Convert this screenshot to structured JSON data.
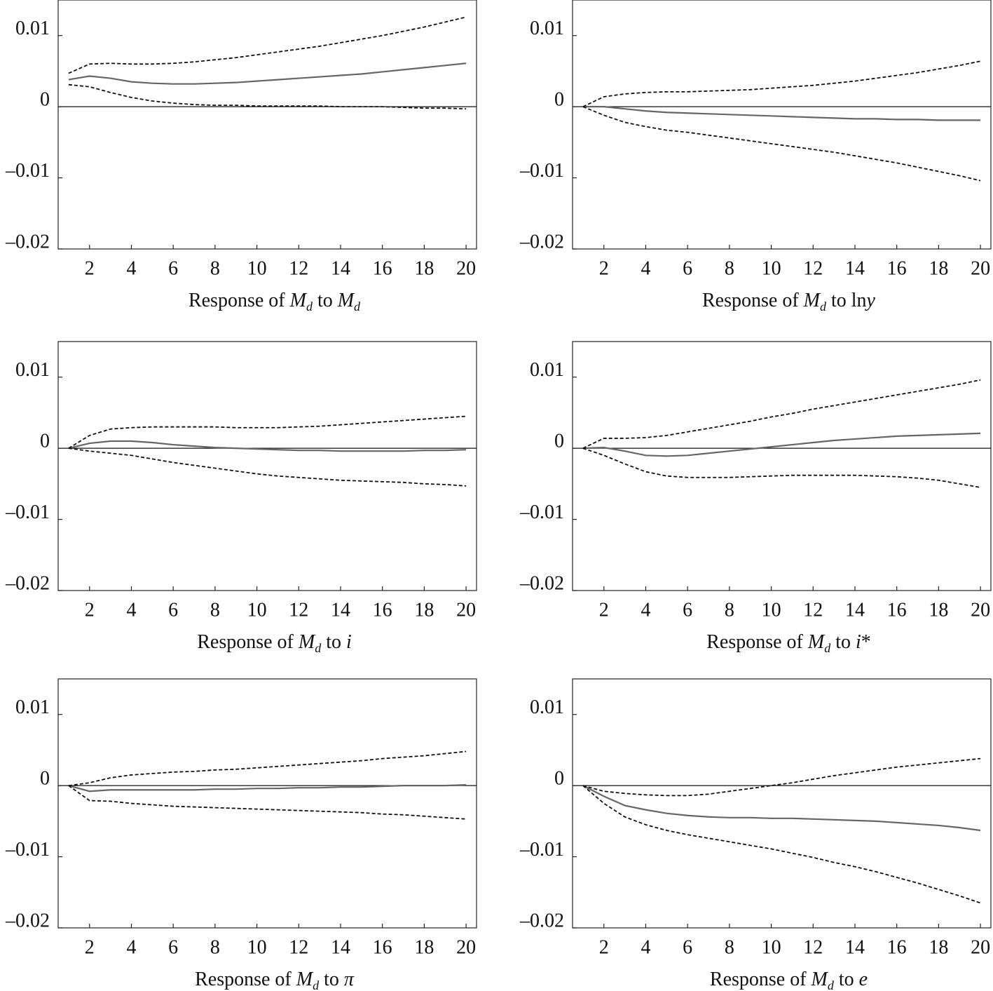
{
  "chart_data": [
    {
      "type": "line",
      "title": [
        {
          "text": "Response of "
        },
        {
          "text": "M",
          "italic": true
        },
        {
          "text": "d",
          "italic": true,
          "sub": true
        },
        {
          "text": " to "
        },
        {
          "text": "M",
          "italic": true
        },
        {
          "text": "d",
          "italic": true,
          "sub": true
        }
      ],
      "x": [
        1,
        2,
        3,
        4,
        5,
        6,
        7,
        8,
        9,
        10,
        11,
        12,
        13,
        14,
        15,
        16,
        17,
        18,
        19,
        20
      ],
      "xlim": [
        0.5,
        20.5
      ],
      "xticks": [
        2,
        4,
        6,
        8,
        10,
        12,
        14,
        16,
        18,
        20
      ],
      "ylim": [
        -0.02,
        0.015
      ],
      "yticks": [
        {
          "value": -0.02,
          "label": "–0.02"
        },
        {
          "value": -0.01,
          "label": "–0.01"
        },
        0,
        0.01
      ],
      "zero_line": true,
      "series": [
        {
          "color": "#666666",
          "dash": false,
          "values": [
            0.0038,
            0.0043,
            0.004,
            0.0035,
            0.0033,
            0.0032,
            0.0032,
            0.0033,
            0.0034,
            0.0036,
            0.0038,
            0.004,
            0.0042,
            0.0044,
            0.0046,
            0.0049,
            0.0052,
            0.0055,
            0.0058,
            0.0061
          ]
        },
        {
          "color": "#111111",
          "dash": true,
          "values": [
            0.0047,
            0.006,
            0.0061,
            0.006,
            0.006,
            0.0061,
            0.0063,
            0.0066,
            0.0069,
            0.0073,
            0.0077,
            0.0081,
            0.0085,
            0.009,
            0.0095,
            0.01,
            0.0106,
            0.0112,
            0.0119,
            0.0126
          ]
        },
        {
          "color": "#111111",
          "dash": true,
          "values": [
            0.0031,
            0.0028,
            0.002,
            0.0013,
            0.0008,
            0.0005,
            0.0003,
            0.0002,
            0.0002,
            0.0001,
            0.0001,
            0.0001,
            0.0001,
            0,
            0,
            0,
            -0.0001,
            -0.0002,
            -0.0002,
            -0.0003
          ]
        }
      ]
    },
    {
      "type": "line",
      "title": [
        {
          "text": "Response of "
        },
        {
          "text": "M",
          "italic": true
        },
        {
          "text": "d",
          "italic": true,
          "sub": true
        },
        {
          "text": " to ln"
        },
        {
          "text": "y",
          "italic": true
        }
      ],
      "x": [
        1,
        2,
        3,
        4,
        5,
        6,
        7,
        8,
        9,
        10,
        11,
        12,
        13,
        14,
        15,
        16,
        17,
        18,
        19,
        20
      ],
      "xlim": [
        0.5,
        20.5
      ],
      "xticks": [
        2,
        4,
        6,
        8,
        10,
        12,
        14,
        16,
        18,
        20
      ],
      "ylim": [
        -0.02,
        0.015
      ],
      "yticks": [
        {
          "value": -0.02,
          "label": "–0.02"
        },
        {
          "value": -0.01,
          "label": "–0.01"
        },
        0,
        0.01
      ],
      "zero_line": true,
      "series": [
        {
          "color": "#666666",
          "dash": false,
          "values": [
            0,
            0,
            -0.0003,
            -0.0006,
            -0.0008,
            -0.0009,
            -0.001,
            -0.0011,
            -0.0012,
            -0.0013,
            -0.0014,
            -0.0015,
            -0.0016,
            -0.0017,
            -0.0017,
            -0.0018,
            -0.0018,
            -0.0019,
            -0.0019,
            -0.0019
          ]
        },
        {
          "color": "#111111",
          "dash": true,
          "values": [
            0,
            0.0014,
            0.0018,
            0.002,
            0.0021,
            0.0021,
            0.0022,
            0.0023,
            0.0024,
            0.0026,
            0.0028,
            0.003,
            0.0033,
            0.0036,
            0.004,
            0.0044,
            0.0048,
            0.0053,
            0.0058,
            0.0064
          ]
        },
        {
          "color": "#111111",
          "dash": true,
          "values": [
            0,
            -0.0012,
            -0.0022,
            -0.0028,
            -0.0033,
            -0.0036,
            -0.004,
            -0.0044,
            -0.0048,
            -0.0052,
            -0.0056,
            -0.006,
            -0.0064,
            -0.0069,
            -0.0074,
            -0.0079,
            -0.0085,
            -0.0091,
            -0.0097,
            -0.0104
          ]
        }
      ]
    },
    {
      "type": "line",
      "title": [
        {
          "text": "Response of "
        },
        {
          "text": "M",
          "italic": true
        },
        {
          "text": "d",
          "italic": true,
          "sub": true
        },
        {
          "text": " to "
        },
        {
          "text": "i",
          "italic": true
        }
      ],
      "x": [
        1,
        2,
        3,
        4,
        5,
        6,
        7,
        8,
        9,
        10,
        11,
        12,
        13,
        14,
        15,
        16,
        17,
        18,
        19,
        20
      ],
      "xlim": [
        0.5,
        20.5
      ],
      "xticks": [
        2,
        4,
        6,
        8,
        10,
        12,
        14,
        16,
        18,
        20
      ],
      "ylim": [
        -0.02,
        0.015
      ],
      "yticks": [
        {
          "value": -0.02,
          "label": "–0.02"
        },
        {
          "value": -0.01,
          "label": "–0.01"
        },
        0,
        0.01
      ],
      "zero_line": true,
      "series": [
        {
          "color": "#666666",
          "dash": false,
          "values": [
            0,
            0.0007,
            0.001,
            0.001,
            0.0008,
            0.0005,
            0.0003,
            0.0001,
            0,
            -0.0001,
            -0.0002,
            -0.0003,
            -0.0003,
            -0.0004,
            -0.0004,
            -0.0004,
            -0.0004,
            -0.0003,
            -0.0003,
            -0.0002
          ]
        },
        {
          "color": "#111111",
          "dash": true,
          "values": [
            0,
            0.0018,
            0.0027,
            0.0029,
            0.003,
            0.003,
            0.003,
            0.003,
            0.0029,
            0.0029,
            0.0029,
            0.003,
            0.0031,
            0.0033,
            0.0035,
            0.0037,
            0.0039,
            0.0041,
            0.0043,
            0.0045
          ]
        },
        {
          "color": "#111111",
          "dash": true,
          "values": [
            0,
            -0.0004,
            -0.0007,
            -0.001,
            -0.0015,
            -0.002,
            -0.0024,
            -0.0028,
            -0.0032,
            -0.0036,
            -0.0039,
            -0.0041,
            -0.0043,
            -0.0045,
            -0.0046,
            -0.0047,
            -0.0048,
            -0.005,
            -0.0051,
            -0.0053
          ]
        }
      ]
    },
    {
      "type": "line",
      "title": [
        {
          "text": "Response of "
        },
        {
          "text": "M",
          "italic": true
        },
        {
          "text": "d",
          "italic": true,
          "sub": true
        },
        {
          "text": " to "
        },
        {
          "text": "i",
          "italic": true
        },
        {
          "text": "*"
        }
      ],
      "x": [
        1,
        2,
        3,
        4,
        5,
        6,
        7,
        8,
        9,
        10,
        11,
        12,
        13,
        14,
        15,
        16,
        17,
        18,
        19,
        20
      ],
      "xlim": [
        0.5,
        20.5
      ],
      "xticks": [
        2,
        4,
        6,
        8,
        10,
        12,
        14,
        16,
        18,
        20
      ],
      "ylim": [
        -0.02,
        0.015
      ],
      "yticks": [
        {
          "value": -0.02,
          "label": "–0.02"
        },
        {
          "value": -0.01,
          "label": "–0.01"
        },
        0,
        0.01
      ],
      "zero_line": true,
      "series": [
        {
          "color": "#666666",
          "dash": false,
          "values": [
            0,
            0.0001,
            -0.0004,
            -0.001,
            -0.0011,
            -0.001,
            -0.0007,
            -0.0004,
            -0.0001,
            0.0002,
            0.0005,
            0.0008,
            0.0011,
            0.0013,
            0.0015,
            0.0017,
            0.0018,
            0.0019,
            0.002,
            0.0021
          ]
        },
        {
          "color": "#111111",
          "dash": true,
          "values": [
            0,
            0.0014,
            0.0014,
            0.0015,
            0.0018,
            0.0023,
            0.0028,
            0.0033,
            0.0038,
            0.0044,
            0.0049,
            0.0055,
            0.006,
            0.0065,
            0.007,
            0.0075,
            0.008,
            0.0085,
            0.009,
            0.0096
          ]
        },
        {
          "color": "#111111",
          "dash": true,
          "values": [
            0,
            -0.001,
            -0.0022,
            -0.0033,
            -0.0039,
            -0.0041,
            -0.0041,
            -0.0041,
            -0.004,
            -0.0039,
            -0.0038,
            -0.0038,
            -0.0038,
            -0.0038,
            -0.0039,
            -0.004,
            -0.0042,
            -0.0045,
            -0.005,
            -0.0055
          ]
        }
      ]
    },
    {
      "type": "line",
      "title": [
        {
          "text": "Response of "
        },
        {
          "text": "M",
          "italic": true
        },
        {
          "text": "d",
          "italic": true,
          "sub": true
        },
        {
          "text": " to "
        },
        {
          "text": "π",
          "italic": true
        }
      ],
      "x": [
        1,
        2,
        3,
        4,
        5,
        6,
        7,
        8,
        9,
        10,
        11,
        12,
        13,
        14,
        15,
        16,
        17,
        18,
        19,
        20
      ],
      "xlim": [
        0.5,
        20.5
      ],
      "xticks": [
        2,
        4,
        6,
        8,
        10,
        12,
        14,
        16,
        18,
        20
      ],
      "ylim": [
        -0.02,
        0.015
      ],
      "yticks": [
        {
          "value": -0.02,
          "label": "–0.02"
        },
        {
          "value": -0.01,
          "label": "–0.01"
        },
        0,
        0.01
      ],
      "zero_line": true,
      "series": [
        {
          "color": "#666666",
          "dash": false,
          "values": [
            0,
            -0.0008,
            -0.0006,
            -0.0006,
            -0.0006,
            -0.0006,
            -0.0006,
            -0.0005,
            -0.0005,
            -0.0004,
            -0.0004,
            -0.0003,
            -0.0003,
            -0.0002,
            -0.0002,
            -0.0001,
            0,
            0,
            0,
            0.0001
          ]
        },
        {
          "color": "#111111",
          "dash": true,
          "values": [
            0,
            0.0004,
            0.0011,
            0.0015,
            0.0017,
            0.0019,
            0.002,
            0.0022,
            0.0023,
            0.0025,
            0.0027,
            0.0029,
            0.0031,
            0.0033,
            0.0035,
            0.0038,
            0.004,
            0.0042,
            0.0045,
            0.0048
          ]
        },
        {
          "color": "#111111",
          "dash": true,
          "values": [
            0,
            -0.0021,
            -0.0022,
            -0.0025,
            -0.0027,
            -0.0029,
            -0.003,
            -0.0031,
            -0.0032,
            -0.0033,
            -0.0034,
            -0.0035,
            -0.0036,
            -0.0037,
            -0.0038,
            -0.004,
            -0.0041,
            -0.0043,
            -0.0045,
            -0.0047
          ]
        }
      ]
    },
    {
      "type": "line",
      "title": [
        {
          "text": "Response of "
        },
        {
          "text": "M",
          "italic": true
        },
        {
          "text": "d",
          "italic": true,
          "sub": true
        },
        {
          "text": " to "
        },
        {
          "text": "e",
          "italic": true
        }
      ],
      "x": [
        1,
        2,
        3,
        4,
        5,
        6,
        7,
        8,
        9,
        10,
        11,
        12,
        13,
        14,
        15,
        16,
        17,
        18,
        19,
        20
      ],
      "xlim": [
        0.5,
        20.5
      ],
      "xticks": [
        2,
        4,
        6,
        8,
        10,
        12,
        14,
        16,
        18,
        20
      ],
      "ylim": [
        -0.02,
        0.015
      ],
      "yticks": [
        {
          "value": -0.02,
          "label": "–0.02"
        },
        {
          "value": -0.01,
          "label": "–0.01"
        },
        0,
        0.01
      ],
      "zero_line": true,
      "series": [
        {
          "color": "#666666",
          "dash": false,
          "values": [
            0,
            -0.0015,
            -0.0028,
            -0.0034,
            -0.0039,
            -0.0042,
            -0.0044,
            -0.0045,
            -0.0045,
            -0.0046,
            -0.0046,
            -0.0047,
            -0.0048,
            -0.0049,
            -0.005,
            -0.0052,
            -0.0054,
            -0.0056,
            -0.0059,
            -0.0063
          ]
        },
        {
          "color": "#111111",
          "dash": true,
          "values": [
            0,
            -0.0008,
            -0.0011,
            -0.0013,
            -0.0014,
            -0.0014,
            -0.0012,
            -0.0008,
            -0.0004,
            0,
            0.0004,
            0.0009,
            0.0014,
            0.0018,
            0.0022,
            0.0026,
            0.0029,
            0.0032,
            0.0035,
            0.0038
          ]
        },
        {
          "color": "#111111",
          "dash": true,
          "values": [
            0,
            -0.0025,
            -0.0044,
            -0.0055,
            -0.0063,
            -0.0069,
            -0.0074,
            -0.0079,
            -0.0084,
            -0.0089,
            -0.0095,
            -0.0101,
            -0.0108,
            -0.0114,
            -0.0121,
            -0.0129,
            -0.0137,
            -0.0146,
            -0.0155,
            -0.0165
          ]
        }
      ]
    }
  ]
}
